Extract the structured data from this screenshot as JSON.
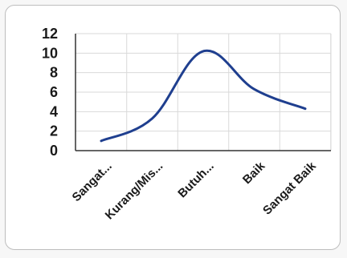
{
  "chart_data": {
    "type": "line",
    "smooth": true,
    "categories": [
      "Sangat...",
      "Kurang/Mis...",
      "Butuh...",
      "Baik",
      "Sangat Baik"
    ],
    "x_positions": [
      0,
      1,
      2,
      3,
      4
    ],
    "values": [
      1,
      3.3,
      10.2,
      6.3,
      4.3
    ],
    "ylim": [
      0,
      12
    ],
    "yticks": [
      "0",
      "2",
      "4",
      "6",
      "8",
      "10",
      "12"
    ],
    "grid": true,
    "series_color": "#1f3f8f",
    "grid_color": "#d9d9d9",
    "axis_color": "#333333"
  }
}
